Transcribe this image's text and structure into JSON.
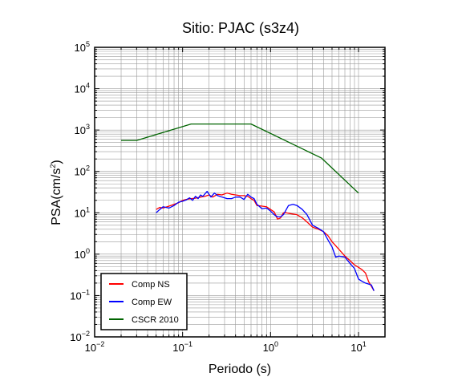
{
  "chart_data": {
    "type": "line",
    "title": "Sitio: PJAC (s3z4)",
    "xlabel": "Periodo (s)",
    "ylabel": "PSA(cm/s2)",
    "ylabel_base": "PSA(cm/s",
    "ylabel_sup": "2",
    "ylabel_end": ")",
    "xscale": "log",
    "yscale": "log",
    "xlim": [
      0.01,
      20
    ],
    "ylim": [
      0.01,
      100000
    ],
    "grid": true,
    "legend_position": "bottom-left",
    "x_ticks": [
      {
        "base": "10",
        "exp": "−2",
        "value": 0.01
      },
      {
        "base": "10",
        "exp": "−1",
        "value": 0.1
      },
      {
        "base": "10",
        "exp": "0",
        "value": 1
      },
      {
        "base": "10",
        "exp": "1",
        "value": 10
      }
    ],
    "y_ticks": [
      {
        "base": "10",
        "exp": "−2",
        "value": 0.01
      },
      {
        "base": "10",
        "exp": "−1",
        "value": 0.1
      },
      {
        "base": "10",
        "exp": "0",
        "value": 1
      },
      {
        "base": "10",
        "exp": "1",
        "value": 10
      },
      {
        "base": "10",
        "exp": "2",
        "value": 100
      },
      {
        "base": "10",
        "exp": "3",
        "value": 1000
      },
      {
        "base": "10",
        "exp": "4",
        "value": 10000
      },
      {
        "base": "10",
        "exp": "5",
        "value": 100000
      }
    ],
    "series": [
      {
        "name": "Comp NS",
        "color": "#ff0000",
        "points": [
          [
            0.05,
            12.0
          ],
          [
            0.055,
            13.5
          ],
          [
            0.06,
            13.0
          ],
          [
            0.07,
            14.5
          ],
          [
            0.08,
            16.0
          ],
          [
            0.09,
            17.5
          ],
          [
            0.1,
            20.0
          ],
          [
            0.11,
            21.0
          ],
          [
            0.125,
            22.0
          ],
          [
            0.14,
            22.5
          ],
          [
            0.16,
            24.0
          ],
          [
            0.18,
            25.0
          ],
          [
            0.2,
            27.0
          ],
          [
            0.22,
            24.0
          ],
          [
            0.25,
            28.0
          ],
          [
            0.28,
            27.0
          ],
          [
            0.32,
            30.0
          ],
          [
            0.36,
            28.0
          ],
          [
            0.4,
            27.0
          ],
          [
            0.45,
            26.0
          ],
          [
            0.5,
            26.0
          ],
          [
            0.55,
            25.0
          ],
          [
            0.6,
            22.0
          ],
          [
            0.65,
            20.0
          ],
          [
            0.7,
            15.0
          ],
          [
            0.8,
            14.5
          ],
          [
            0.9,
            14.0
          ],
          [
            1.0,
            12.0
          ],
          [
            1.1,
            10.5
          ],
          [
            1.2,
            7.0
          ],
          [
            1.3,
            7.5
          ],
          [
            1.4,
            10.0
          ],
          [
            1.5,
            10.0
          ],
          [
            1.7,
            9.5
          ],
          [
            2.0,
            9.0
          ],
          [
            2.3,
            7.5
          ],
          [
            2.6,
            6.0
          ],
          [
            3.0,
            4.5
          ],
          [
            3.5,
            4.0
          ],
          [
            4.0,
            3.5
          ],
          [
            4.5,
            2.8
          ],
          [
            5.0,
            2.0
          ],
          [
            6.0,
            1.3
          ],
          [
            7.0,
            0.9
          ],
          [
            8.0,
            0.7
          ],
          [
            9.0,
            0.55
          ],
          [
            10.0,
            0.48
          ],
          [
            11.0,
            0.42
          ],
          [
            12.0,
            0.35
          ],
          [
            13.0,
            0.22
          ],
          [
            15.0,
            0.13
          ]
        ]
      },
      {
        "name": "Comp EW",
        "color": "#0000ff",
        "points": [
          [
            0.05,
            10.0
          ],
          [
            0.055,
            12.0
          ],
          [
            0.06,
            14.0
          ],
          [
            0.07,
            13.0
          ],
          [
            0.08,
            15.0
          ],
          [
            0.09,
            18.0
          ],
          [
            0.1,
            19.0
          ],
          [
            0.11,
            20.5
          ],
          [
            0.12,
            23.0
          ],
          [
            0.13,
            20.0
          ],
          [
            0.14,
            25.0
          ],
          [
            0.15,
            22.0
          ],
          [
            0.16,
            27.0
          ],
          [
            0.17,
            25.0
          ],
          [
            0.19,
            33.0
          ],
          [
            0.21,
            24.0
          ],
          [
            0.23,
            30.0
          ],
          [
            0.25,
            26.0
          ],
          [
            0.28,
            24.0
          ],
          [
            0.32,
            22.0
          ],
          [
            0.36,
            22.0
          ],
          [
            0.4,
            24.0
          ],
          [
            0.45,
            24.0
          ],
          [
            0.5,
            21.0
          ],
          [
            0.55,
            28.0
          ],
          [
            0.6,
            24.0
          ],
          [
            0.65,
            22.0
          ],
          [
            0.7,
            16.0
          ],
          [
            0.8,
            12.5
          ],
          [
            0.9,
            13.0
          ],
          [
            1.0,
            11.0
          ],
          [
            1.1,
            9.0
          ],
          [
            1.2,
            8.0
          ],
          [
            1.3,
            8.0
          ],
          [
            1.4,
            9.0
          ],
          [
            1.6,
            15.0
          ],
          [
            1.8,
            16.0
          ],
          [
            2.0,
            15.0
          ],
          [
            2.3,
            12.0
          ],
          [
            2.6,
            9.0
          ],
          [
            3.0,
            5.0
          ],
          [
            3.5,
            4.2
          ],
          [
            4.0,
            3.5
          ],
          [
            4.5,
            2.2
          ],
          [
            5.0,
            1.5
          ],
          [
            5.5,
            0.85
          ],
          [
            6.0,
            0.9
          ],
          [
            7.0,
            0.85
          ],
          [
            8.0,
            0.6
          ],
          [
            9.0,
            0.45
          ],
          [
            10.0,
            0.25
          ],
          [
            11.0,
            0.22
          ],
          [
            12.0,
            0.2
          ],
          [
            14.0,
            0.18
          ],
          [
            15.0,
            0.13
          ]
        ]
      },
      {
        "name": "CSCR 2010",
        "color": "#006400",
        "points": [
          [
            0.02,
            560
          ],
          [
            0.03,
            560
          ],
          [
            0.125,
            1400
          ],
          [
            0.6,
            1400
          ],
          [
            3.8,
            210
          ],
          [
            10.0,
            30
          ]
        ]
      }
    ]
  }
}
